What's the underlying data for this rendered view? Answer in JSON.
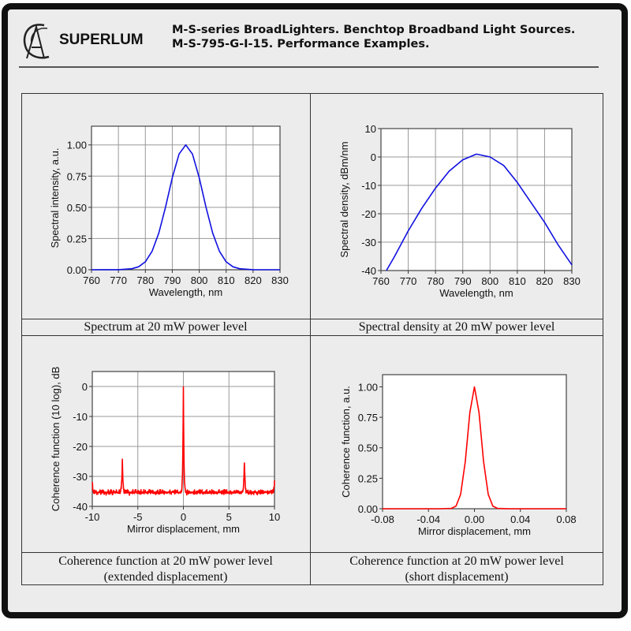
{
  "header": {
    "brand": "SUPERLUM",
    "title_line1": "M-S-series BroadLighters. Benchtop Broadband Light Sources.",
    "title_line2": "M-S-795-G-I-15. Performance Examples."
  },
  "captions": {
    "c1": "Spectrum at 20 mW power level",
    "c2": "Spectral density at 20 mW power level",
    "c3_line1": "Coherence function at 20 mW power level",
    "c3_line2": "(extended displacement)",
    "c4_line1": "Coherence function at 20 mW power level",
    "c4_line2": "(short displacement)"
  },
  "chart_data": [
    {
      "type": "line",
      "color": "#1010e0",
      "xlabel": "Wavelength, nm",
      "ylabel": "Spectral intensity, a.u.",
      "xlim": [
        760,
        830
      ],
      "ylim": [
        0,
        1.15
      ],
      "xticks": [
        760,
        770,
        780,
        790,
        800,
        810,
        820,
        830
      ],
      "yticks": [
        0,
        0.25,
        0.5,
        0.75,
        1.0
      ],
      "ytick_labels": [
        "0.00",
        "0.25",
        "0.50",
        "0.75",
        "1.00"
      ],
      "grid": true,
      "x": [
        760,
        770,
        775,
        777.5,
        780,
        782.5,
        785,
        787.5,
        790,
        792.5,
        795,
        797.5,
        800,
        802.5,
        805,
        807.5,
        810,
        812.5,
        815,
        820,
        830
      ],
      "y": [
        0,
        0.0005,
        0.008,
        0.024,
        0.064,
        0.148,
        0.295,
        0.503,
        0.737,
        0.927,
        1.0,
        0.927,
        0.737,
        0.503,
        0.295,
        0.148,
        0.064,
        0.024,
        0.008,
        0.0005,
        0
      ]
    },
    {
      "type": "line",
      "color": "#1010e0",
      "xlabel": "Wavelength, nm",
      "ylabel": "Spectral density, dBm/nm",
      "xlim": [
        760,
        830
      ],
      "ylim": [
        -40,
        10
      ],
      "xticks": [
        760,
        770,
        780,
        790,
        800,
        810,
        820,
        830
      ],
      "yticks": [
        -40,
        -30,
        -20,
        -10,
        0,
        10
      ],
      "ytick_labels": [
        "-40",
        "-30",
        "-20",
        "-10",
        "0",
        "10"
      ],
      "grid": true,
      "x": [
        762,
        765,
        770,
        775,
        780,
        785,
        790,
        795,
        800,
        805,
        810,
        815,
        820,
        825,
        830
      ],
      "y": [
        -40,
        -35,
        -26,
        -18,
        -11,
        -5,
        -1,
        1,
        0,
        -3,
        -9,
        -16,
        -23,
        -31,
        -38
      ]
    },
    {
      "type": "line",
      "color": "#ff0000",
      "xlabel": "Mirror displacement, mm",
      "ylabel": "Coherence function (10 log), dB",
      "xlim": [
        -10,
        10
      ],
      "ylim": [
        -40,
        5
      ],
      "xticks": [
        -10,
        -5,
        0,
        5,
        10
      ],
      "yticks": [
        -40,
        -30,
        -20,
        -10,
        0
      ],
      "ytick_labels": [
        "-40",
        "-30",
        "-20",
        "-10",
        "0"
      ],
      "grid": true,
      "noise_floor": -36,
      "noise_amplitude": 1.6,
      "peaks": [
        {
          "x": -10,
          "y": -32
        },
        {
          "x": -6.7,
          "y": -25
        },
        {
          "x": 0,
          "y": 0
        },
        {
          "x": 6.7,
          "y": -25
        },
        {
          "x": 10,
          "y": -32
        }
      ]
    },
    {
      "type": "line",
      "color": "#ff0000",
      "xlabel": "Mirror displacement, mm",
      "ylabel": "Coherence function, a.u.",
      "xlim": [
        -0.08,
        0.08
      ],
      "ylim": [
        0,
        1.1
      ],
      "xticks": [
        -0.08,
        -0.04,
        0,
        0.04,
        0.08
      ],
      "xtick_labels": [
        "-0.08",
        "-0.04",
        "0.00",
        "0.04",
        "0.08"
      ],
      "yticks": [
        0,
        0.25,
        0.5,
        0.75,
        1.0
      ],
      "ytick_labels": [
        "0.00",
        "0.25",
        "0.50",
        "0.75",
        "1.00"
      ],
      "grid": false,
      "x": [
        -0.08,
        -0.03,
        -0.02,
        -0.016,
        -0.012,
        -0.008,
        -0.004,
        0,
        0.004,
        0.008,
        0.012,
        0.016,
        0.02,
        0.03,
        0.08
      ],
      "y": [
        0,
        0,
        0.003,
        0.022,
        0.118,
        0.386,
        0.79,
        1.0,
        0.79,
        0.386,
        0.118,
        0.022,
        0.003,
        0,
        0
      ]
    }
  ]
}
